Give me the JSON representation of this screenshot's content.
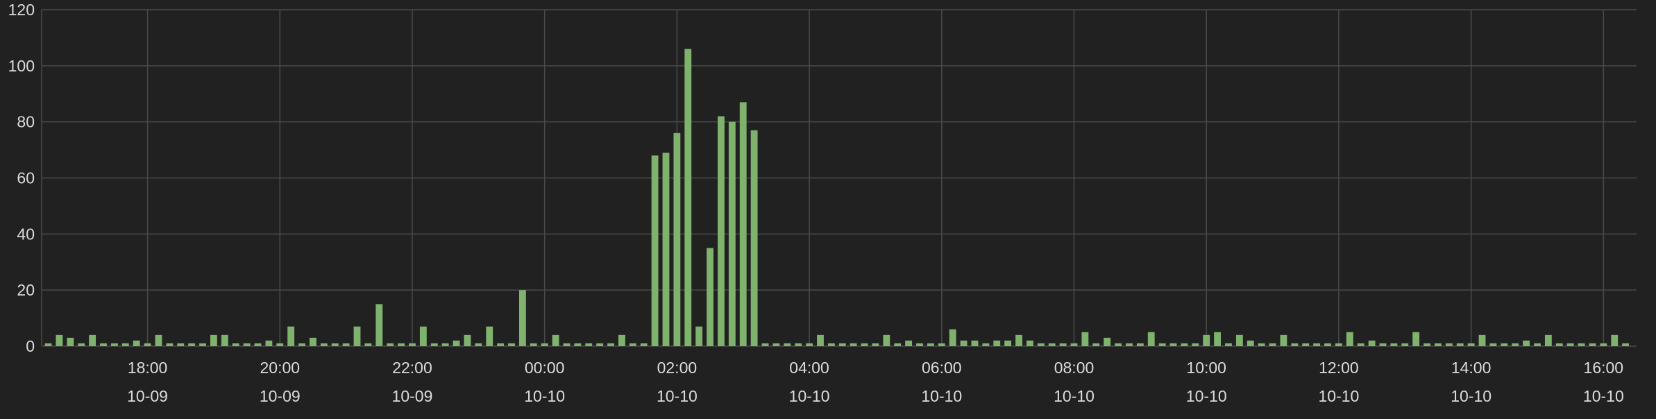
{
  "chart_data": {
    "type": "bar",
    "title": "",
    "xlabel": "",
    "ylabel": "",
    "ylim": [
      0,
      120
    ],
    "y_ticks": [
      0,
      20,
      40,
      60,
      80,
      100,
      120
    ],
    "x_range": [
      "2023-10-09 16:24",
      "2023-10-10 16:30"
    ],
    "x_ticks": [
      {
        "time": "18:00",
        "date": "10-09"
      },
      {
        "time": "20:00",
        "date": "10-09"
      },
      {
        "time": "22:00",
        "date": "10-09"
      },
      {
        "time": "00:00",
        "date": "10-10"
      },
      {
        "time": "02:00",
        "date": "10-10"
      },
      {
        "time": "04:00",
        "date": "10-10"
      },
      {
        "time": "06:00",
        "date": "10-10"
      },
      {
        "time": "08:00",
        "date": "10-10"
      },
      {
        "time": "10:00",
        "date": "10-10"
      },
      {
        "time": "12:00",
        "date": "10-10"
      },
      {
        "time": "14:00",
        "date": "10-10"
      },
      {
        "time": "16:00",
        "date": "10-10"
      }
    ],
    "grid": true,
    "legend": "none",
    "bar_color": "#7eb26d",
    "grid_color": "#4a4a4a",
    "background": "#212121",
    "label_color": "#dcdcdc",
    "bar_interval_minutes": 10,
    "first_bar": "2023-10-09 16:30",
    "series": [
      {
        "values": [
          1,
          4,
          3,
          1,
          4,
          1,
          1,
          1,
          2,
          1,
          4,
          1,
          1,
          1,
          1,
          4,
          4,
          1,
          1,
          1,
          2,
          1,
          7,
          1,
          3,
          1,
          1,
          1,
          7,
          1,
          15,
          1,
          1,
          1,
          7,
          1,
          1,
          2,
          4,
          1,
          7,
          1,
          1,
          20,
          1,
          1,
          4,
          1,
          1,
          1,
          1,
          1,
          4,
          1,
          1,
          68,
          69,
          76,
          106,
          7,
          35,
          82,
          80,
          87,
          77,
          1,
          1,
          1,
          1,
          1,
          4,
          1,
          1,
          1,
          1,
          1,
          4,
          1,
          2,
          1,
          1,
          1,
          6,
          2,
          2,
          1,
          2,
          2,
          4,
          2,
          1,
          1,
          1,
          1,
          5,
          1,
          3,
          1,
          1,
          1,
          5,
          1,
          1,
          1,
          1,
          4,
          5,
          1,
          4,
          2,
          1,
          1,
          4,
          1,
          1,
          1,
          1,
          1,
          5,
          1,
          2,
          1,
          1,
          1,
          5,
          1,
          1,
          1,
          1,
          1,
          4,
          1,
          1,
          1,
          2,
          1,
          4,
          1,
          1,
          1,
          1,
          1,
          4,
          1
        ]
      }
    ]
  }
}
